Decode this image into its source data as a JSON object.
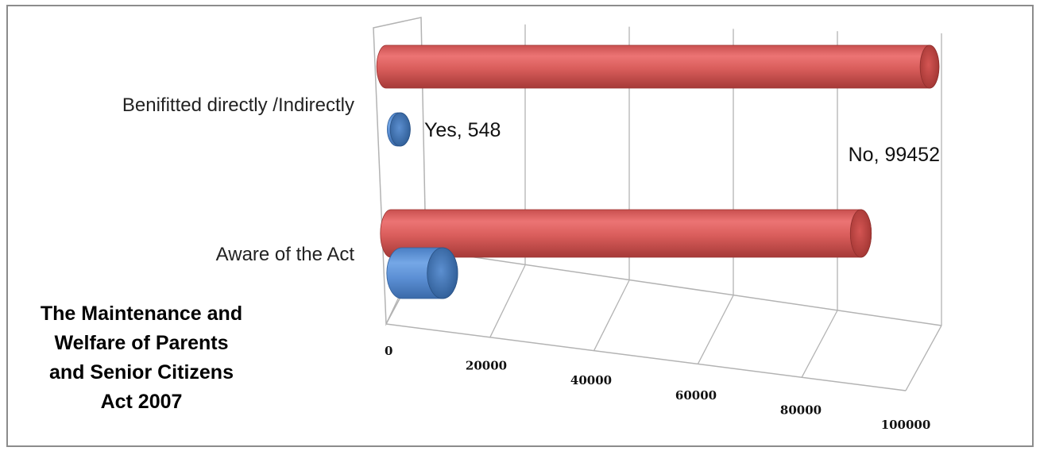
{
  "chart_data": {
    "type": "bar",
    "orientation": "horizontal",
    "style": "3d-cylinder",
    "categories": [
      "Aware of the Act",
      "Benifitted directly /Indirectly"
    ],
    "series": [
      {
        "name": "Yes",
        "values": [
          7400,
          548
        ]
      },
      {
        "name": "No",
        "values": [
          86000,
          99452
        ]
      }
    ],
    "data_labels": [
      {
        "category": "Benifitted directly /Indirectly",
        "text": "Yes, 548"
      },
      {
        "category": "Benifitted directly /Indirectly",
        "text": "No, 99452"
      }
    ],
    "xlim": [
      0,
      100000
    ],
    "x_ticks": [
      0,
      20000,
      40000,
      60000,
      80000,
      100000
    ],
    "x_tick_labels": [
      "0",
      "20000",
      "40000",
      "60000",
      "80000",
      "100000"
    ],
    "grid": true,
    "title_lines": [
      "The Maintenance and",
      "Welfare of Parents",
      "and Senior Citizens",
      "Act 2007"
    ],
    "colors": {
      "Yes": "#4f81bd",
      "No": "#c0504d",
      "grid": "#b3b3b3",
      "border": "#8c8c8c"
    }
  }
}
